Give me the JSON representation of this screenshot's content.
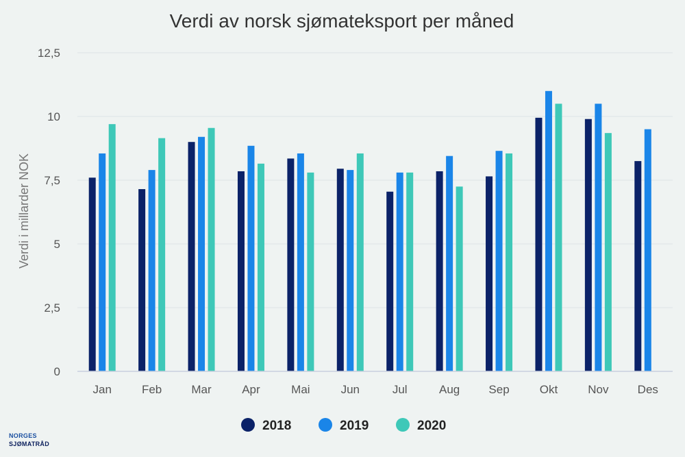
{
  "chart_data": {
    "type": "bar",
    "title": "Verdi av norsk sjømateksport per måned",
    "xlabel": "",
    "ylabel": "Verdi i millarder NOK",
    "ylim": [
      0,
      12.5
    ],
    "yticks": [
      0,
      2.5,
      5,
      7.5,
      10,
      12.5
    ],
    "ytick_labels": [
      "0",
      "2,5",
      "5",
      "7,5",
      "10",
      "12,5"
    ],
    "categories": [
      "Jan",
      "Feb",
      "Mar",
      "Apr",
      "Mai",
      "Jun",
      "Jul",
      "Aug",
      "Sep",
      "Okt",
      "Nov",
      "Des"
    ],
    "series": [
      {
        "name": "2018",
        "color": "#0b2268",
        "values": [
          7.6,
          7.15,
          9.0,
          7.85,
          8.35,
          7.95,
          7.05,
          7.85,
          7.65,
          9.95,
          9.9,
          8.25
        ]
      },
      {
        "name": "2019",
        "color": "#1a85e8",
        "values": [
          8.55,
          7.9,
          9.2,
          8.85,
          8.55,
          7.9,
          7.8,
          8.45,
          8.65,
          11.0,
          10.5,
          9.5
        ]
      },
      {
        "name": "2020",
        "color": "#3ec8b8",
        "values": [
          9.7,
          9.15,
          9.55,
          8.15,
          7.8,
          8.55,
          7.8,
          7.25,
          8.55,
          10.5,
          9.35,
          null
        ]
      }
    ],
    "grid": true,
    "legend": "bottom-center"
  },
  "logo": {
    "line1": "NORGES",
    "line2": "SJØMATRÅD"
  }
}
